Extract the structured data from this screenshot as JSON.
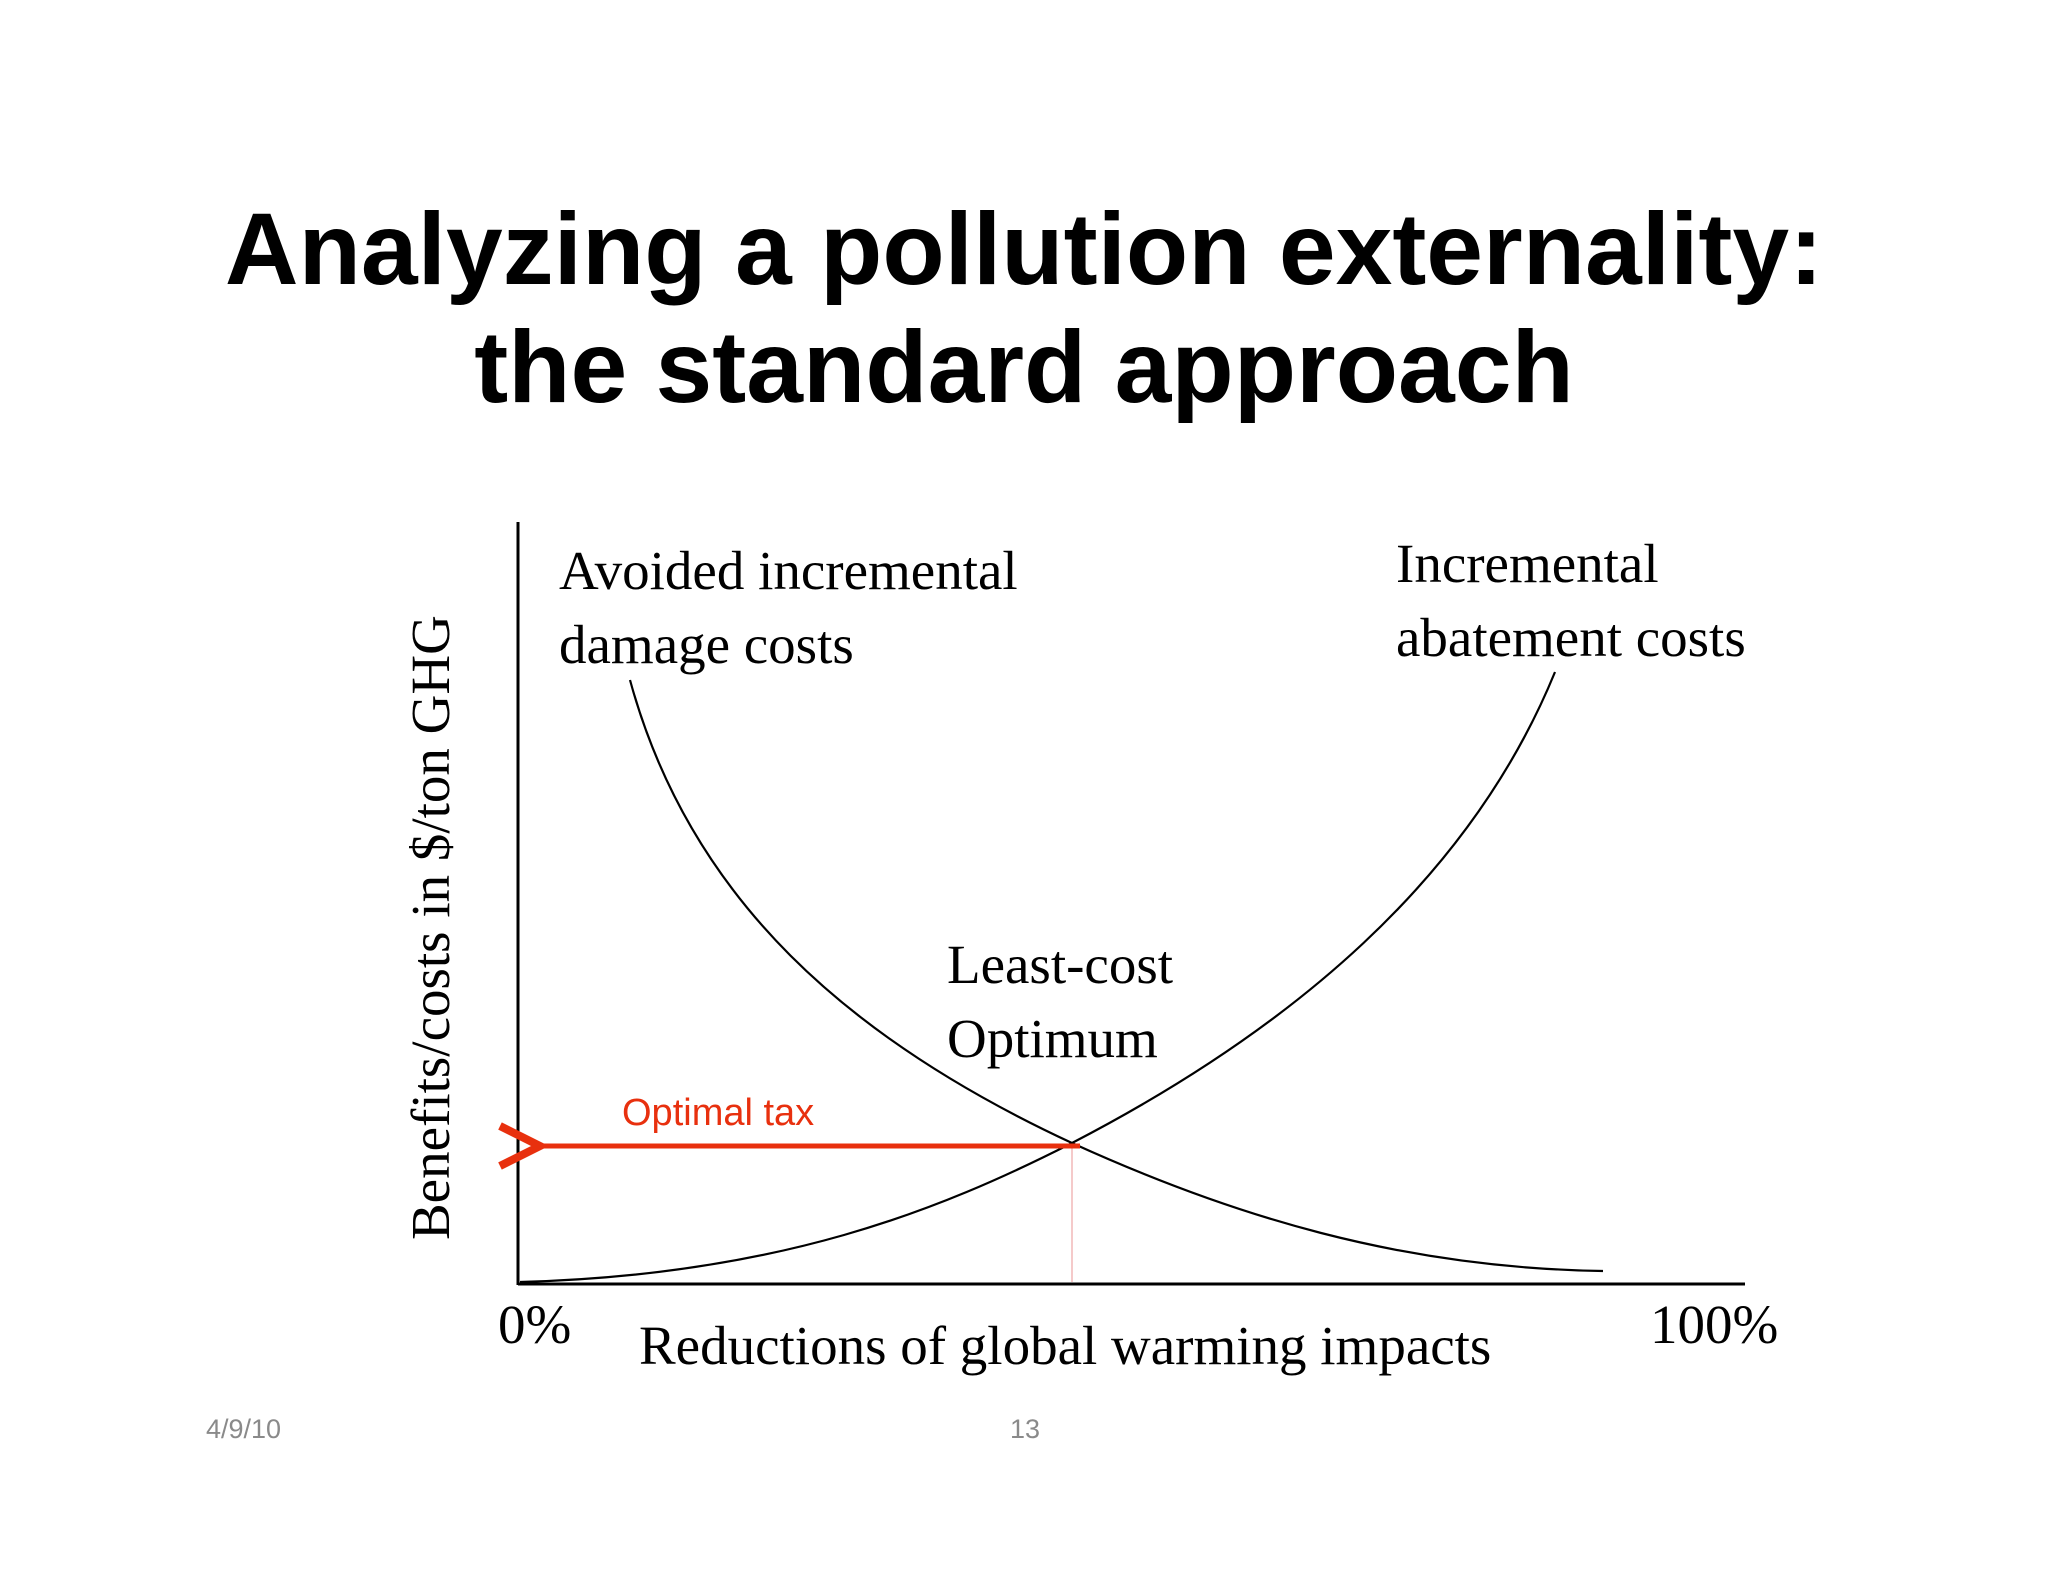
{
  "slide": {
    "title_line1": "Analyzing a pollution externality:",
    "title_line2": "the standard approach",
    "footer_date": "4/9/10",
    "footer_page": "13"
  },
  "diagram": {
    "y_axis_label": "Benefits/costs in $/ton GHG",
    "x_axis_label": "Reductions of global warming impacts",
    "x_axis_start": "0%",
    "x_axis_end": "100%",
    "damage_curve_label_line1": "Avoided incremental",
    "damage_curve_label_line2": "damage costs",
    "abatement_curve_label_line1": "Incremental",
    "abatement_curve_label_line2": "abatement costs",
    "optimum_label_line1": "Least-cost",
    "optimum_label_line2": "Optimum",
    "tax_label": "Optimal tax",
    "colors": {
      "curves": "#000000",
      "tax_arrow": "#e8300e",
      "drop_line": "#f2b8b8"
    }
  }
}
